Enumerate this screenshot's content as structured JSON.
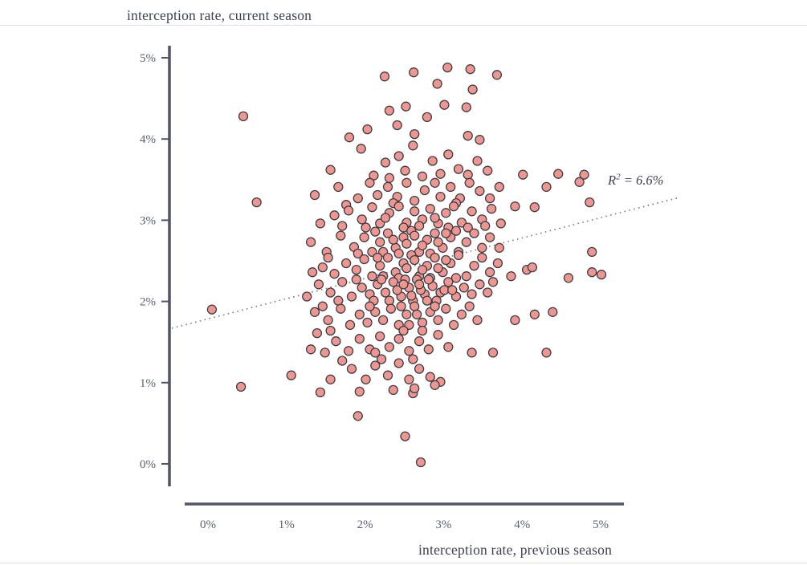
{
  "chart_data": {
    "type": "scatter",
    "title": "",
    "ylabel": "interception rate, current season",
    "xlabel": "interception rate, previous season",
    "x_tick_labels": [
      "0%",
      "1%",
      "2%",
      "3%",
      "4%",
      "5%"
    ],
    "x_tick_values": [
      0,
      1,
      2,
      3,
      4,
      5
    ],
    "y_tick_labels": [
      "0%",
      "1%",
      "2%",
      "3%",
      "4%",
      "5%"
    ],
    "y_tick_values": [
      0,
      1,
      2,
      3,
      4,
      5
    ],
    "xlim": [
      -0.5,
      5.6
    ],
    "ylim": [
      -0.3,
      5.2
    ],
    "grid": false,
    "legend": "none",
    "units": "percent",
    "annotation": {
      "r": "R",
      "sup": "2",
      "rest": " = 6.6%",
      "text": "R² = 6.6%"
    },
    "trendline": {
      "style": "dotted",
      "x1": -0.46,
      "y1": 1.67,
      "x2": 6.0,
      "y2": 3.28
    },
    "colors": {
      "point_fill": "#f0968f",
      "point_stroke": "#3a3f4a",
      "axis": "#4e556b",
      "tick_text": "#586177",
      "trend": "#6b7280",
      "text": "#3c4254"
    },
    "points": [
      [
        2.62,
        4.82
      ],
      [
        3.05,
        4.88
      ],
      [
        3.34,
        4.86
      ],
      [
        2.25,
        4.77
      ],
      [
        3.68,
        4.79
      ],
      [
        2.92,
        4.68
      ],
      [
        3.37,
        4.61
      ],
      [
        0.45,
        4.28
      ],
      [
        1.8,
        4.02
      ],
      [
        2.03,
        4.12
      ],
      [
        2.31,
        4.35
      ],
      [
        2.52,
        4.4
      ],
      [
        2.63,
        4.06
      ],
      [
        2.79,
        4.27
      ],
      [
        3.01,
        4.42
      ],
      [
        3.29,
        4.39
      ],
      [
        3.31,
        4.04
      ],
      [
        3.46,
        3.99
      ],
      [
        2.41,
        4.17
      ],
      [
        1.56,
        3.62
      ],
      [
        1.95,
        3.88
      ],
      [
        2.11,
        3.55
      ],
      [
        2.26,
        3.71
      ],
      [
        2.43,
        3.79
      ],
      [
        2.51,
        3.61
      ],
      [
        2.61,
        3.92
      ],
      [
        2.73,
        3.54
      ],
      [
        2.86,
        3.73
      ],
      [
        2.96,
        3.57
      ],
      [
        3.06,
        3.81
      ],
      [
        3.19,
        3.63
      ],
      [
        3.31,
        3.56
      ],
      [
        3.43,
        3.73
      ],
      [
        3.56,
        3.61
      ],
      [
        4.01,
        3.56
      ],
      [
        4.46,
        3.57
      ],
      [
        4.79,
        3.56
      ],
      [
        4.73,
        3.47
      ],
      [
        2.31,
        3.52
      ],
      [
        0.62,
        3.22
      ],
      [
        1.36,
        3.31
      ],
      [
        1.66,
        3.41
      ],
      [
        1.91,
        3.27
      ],
      [
        2.06,
        3.46
      ],
      [
        2.16,
        3.31
      ],
      [
        2.29,
        3.41
      ],
      [
        2.41,
        3.29
      ],
      [
        2.53,
        3.46
      ],
      [
        2.63,
        3.24
      ],
      [
        2.76,
        3.37
      ],
      [
        2.89,
        3.46
      ],
      [
        2.96,
        3.29
      ],
      [
        3.09,
        3.41
      ],
      [
        3.21,
        3.27
      ],
      [
        3.33,
        3.46
      ],
      [
        3.46,
        3.36
      ],
      [
        3.59,
        3.27
      ],
      [
        3.71,
        3.41
      ],
      [
        3.91,
        3.17
      ],
      [
        4.31,
        3.41
      ],
      [
        4.86,
        3.22
      ],
      [
        3.16,
        3.21
      ],
      [
        2.36,
        3.21
      ],
      [
        1.76,
        3.19
      ],
      [
        1.43,
        2.96
      ],
      [
        1.61,
        3.06
      ],
      [
        1.79,
        3.12
      ],
      [
        1.96,
        3.01
      ],
      [
        2.09,
        3.16
      ],
      [
        2.19,
        2.96
      ],
      [
        2.31,
        3.09
      ],
      [
        2.43,
        3.17
      ],
      [
        2.53,
        2.97
      ],
      [
        2.63,
        3.11
      ],
      [
        2.73,
        3.01
      ],
      [
        2.83,
        3.14
      ],
      [
        2.93,
        2.96
      ],
      [
        3.03,
        3.09
      ],
      [
        3.13,
        3.17
      ],
      [
        3.23,
        2.97
      ],
      [
        3.36,
        3.11
      ],
      [
        3.49,
        3.01
      ],
      [
        3.61,
        3.14
      ],
      [
        3.73,
        2.96
      ],
      [
        2.49,
        2.91
      ],
      [
        2.69,
        2.93
      ],
      [
        2.89,
        3.03
      ],
      [
        3.06,
        2.91
      ],
      [
        2.26,
        3.03
      ],
      [
        2.01,
        2.91
      ],
      [
        1.71,
        2.93
      ],
      [
        3.31,
        2.91
      ],
      [
        3.53,
        2.93
      ],
      [
        4.16,
        3.16
      ],
      [
        1.31,
        2.73
      ],
      [
        1.51,
        2.61
      ],
      [
        1.69,
        2.81
      ],
      [
        1.86,
        2.67
      ],
      [
        1.99,
        2.79
      ],
      [
        2.09,
        2.61
      ],
      [
        2.19,
        2.73
      ],
      [
        2.29,
        2.84
      ],
      [
        2.39,
        2.66
      ],
      [
        2.49,
        2.79
      ],
      [
        2.59,
        2.87
      ],
      [
        2.69,
        2.61
      ],
      [
        2.79,
        2.76
      ],
      [
        2.89,
        2.84
      ],
      [
        2.99,
        2.66
      ],
      [
        3.09,
        2.79
      ],
      [
        3.19,
        2.61
      ],
      [
        3.29,
        2.73
      ],
      [
        3.39,
        2.84
      ],
      [
        3.49,
        2.66
      ],
      [
        3.59,
        2.79
      ],
      [
        2.43,
        2.59
      ],
      [
        2.53,
        2.71
      ],
      [
        2.63,
        2.81
      ],
      [
        2.73,
        2.69
      ],
      [
        2.83,
        2.59
      ],
      [
        2.93,
        2.73
      ],
      [
        3.03,
        2.84
      ],
      [
        2.23,
        2.61
      ],
      [
        2.13,
        2.86
      ],
      [
        1.91,
        2.59
      ],
      [
        3.71,
        2.66
      ],
      [
        4.89,
        2.61
      ],
      [
        2.36,
        2.76
      ],
      [
        3.16,
        2.87
      ],
      [
        1.46,
        2.42
      ],
      [
        1.61,
        2.34
      ],
      [
        1.76,
        2.47
      ],
      [
        1.89,
        2.39
      ],
      [
        1.99,
        2.52
      ],
      [
        2.09,
        2.31
      ],
      [
        2.19,
        2.44
      ],
      [
        2.29,
        2.54
      ],
      [
        2.39,
        2.36
      ],
      [
        2.49,
        2.47
      ],
      [
        2.59,
        2.57
      ],
      [
        2.69,
        2.31
      ],
      [
        2.79,
        2.44
      ],
      [
        2.89,
        2.54
      ],
      [
        2.99,
        2.36
      ],
      [
        3.09,
        2.47
      ],
      [
        3.19,
        2.57
      ],
      [
        3.29,
        2.31
      ],
      [
        3.39,
        2.44
      ],
      [
        3.49,
        2.54
      ],
      [
        3.59,
        2.36
      ],
      [
        3.69,
        2.47
      ],
      [
        2.43,
        2.29
      ],
      [
        2.53,
        2.41
      ],
      [
        2.63,
        2.51
      ],
      [
        2.73,
        2.39
      ],
      [
        2.83,
        2.29
      ],
      [
        2.93,
        2.41
      ],
      [
        3.03,
        2.51
      ],
      [
        2.23,
        2.31
      ],
      [
        4.06,
        2.39
      ],
      [
        4.13,
        2.42
      ],
      [
        4.59,
        2.29
      ],
      [
        4.89,
        2.36
      ],
      [
        5.01,
        2.33
      ],
      [
        1.33,
        2.36
      ],
      [
        2.16,
        2.54
      ],
      [
        1.53,
        2.54
      ],
      [
        3.86,
        2.31
      ],
      [
        3.16,
        2.29
      ],
      [
        1.41,
        2.21
      ],
      [
        1.56,
        2.11
      ],
      [
        1.71,
        2.24
      ],
      [
        1.83,
        2.06
      ],
      [
        1.96,
        2.17
      ],
      [
        2.06,
        2.09
      ],
      [
        2.16,
        2.21
      ],
      [
        2.26,
        2.11
      ],
      [
        2.36,
        2.24
      ],
      [
        2.46,
        2.06
      ],
      [
        2.56,
        2.17
      ],
      [
        2.66,
        2.27
      ],
      [
        2.76,
        2.09
      ],
      [
        2.86,
        2.19
      ],
      [
        2.96,
        2.11
      ],
      [
        3.06,
        2.24
      ],
      [
        3.16,
        2.06
      ],
      [
        3.26,
        2.17
      ],
      [
        3.36,
        2.09
      ],
      [
        3.46,
        2.21
      ],
      [
        2.31,
        2.01
      ],
      [
        2.41,
        2.14
      ],
      [
        2.51,
        2.27
      ],
      [
        2.61,
        2.01
      ],
      [
        2.71,
        2.14
      ],
      [
        2.81,
        2.27
      ],
      [
        2.91,
        2.01
      ],
      [
        3.01,
        2.14
      ],
      [
        2.21,
        2.27
      ],
      [
        2.11,
        2.01
      ],
      [
        1.66,
        2.01
      ],
      [
        3.56,
        2.11
      ],
      [
        3.63,
        2.24
      ],
      [
        2.49,
        2.21
      ],
      [
        2.59,
        2.07
      ],
      [
        2.69,
        2.21
      ],
      [
        2.79,
        2.01
      ],
      [
        1.26,
        2.06
      ],
      [
        3.11,
        2.14
      ],
      [
        1.89,
        2.27
      ],
      [
        0.05,
        1.9
      ],
      [
        1.36,
        1.87
      ],
      [
        1.53,
        1.77
      ],
      [
        1.69,
        1.91
      ],
      [
        1.81,
        1.71
      ],
      [
        1.93,
        1.84
      ],
      [
        2.03,
        1.74
      ],
      [
        2.13,
        1.87
      ],
      [
        2.23,
        1.77
      ],
      [
        2.33,
        1.91
      ],
      [
        2.43,
        1.71
      ],
      [
        2.53,
        1.84
      ],
      [
        2.63,
        1.94
      ],
      [
        2.73,
        1.74
      ],
      [
        2.83,
        1.87
      ],
      [
        2.93,
        1.77
      ],
      [
        3.03,
        1.91
      ],
      [
        3.13,
        1.71
      ],
      [
        3.23,
        1.84
      ],
      [
        3.33,
        1.94
      ],
      [
        3.43,
        1.77
      ],
      [
        2.46,
        1.94
      ],
      [
        2.56,
        1.71
      ],
      [
        2.66,
        1.84
      ],
      [
        3.91,
        1.77
      ],
      [
        4.16,
        1.84
      ],
      [
        4.39,
        1.87
      ],
      [
        2.06,
        1.94
      ],
      [
        1.46,
        1.94
      ],
      [
        2.89,
        1.94
      ],
      [
        1.31,
        1.41
      ],
      [
        1.49,
        1.37
      ],
      [
        1.63,
        1.51
      ],
      [
        1.79,
        1.39
      ],
      [
        1.93,
        1.54
      ],
      [
        2.06,
        1.41
      ],
      [
        2.19,
        1.57
      ],
      [
        2.31,
        1.44
      ],
      [
        2.43,
        1.54
      ],
      [
        2.56,
        1.39
      ],
      [
        2.69,
        1.51
      ],
      [
        2.81,
        1.41
      ],
      [
        2.93,
        1.59
      ],
      [
        3.06,
        1.44
      ],
      [
        3.36,
        1.37
      ],
      [
        3.63,
        1.37
      ],
      [
        4.31,
        1.37
      ],
      [
        1.39,
        1.61
      ],
      [
        2.13,
        1.37
      ],
      [
        2.49,
        1.64
      ],
      [
        2.73,
        1.64
      ],
      [
        1.56,
        1.64
      ],
      [
        1.06,
        1.09
      ],
      [
        1.56,
        1.04
      ],
      [
        1.83,
        1.17
      ],
      [
        2.01,
        1.04
      ],
      [
        2.13,
        1.21
      ],
      [
        2.29,
        1.09
      ],
      [
        2.43,
        1.24
      ],
      [
        2.56,
        1.04
      ],
      [
        2.69,
        1.17
      ],
      [
        2.83,
        1.07
      ],
      [
        2.96,
        1.01
      ],
      [
        2.21,
        1.29
      ],
      [
        1.71,
        1.27
      ],
      [
        2.61,
        1.29
      ],
      [
        0.42,
        0.95
      ],
      [
        1.43,
        0.88
      ],
      [
        1.93,
        0.89
      ],
      [
        2.36,
        0.91
      ],
      [
        2.61,
        0.87
      ],
      [
        2.63,
        0.93
      ],
      [
        1.91,
        0.59
      ],
      [
        2.51,
        0.34
      ],
      [
        2.71,
        0.02
      ],
      [
        2.89,
        0.97
      ]
    ]
  }
}
